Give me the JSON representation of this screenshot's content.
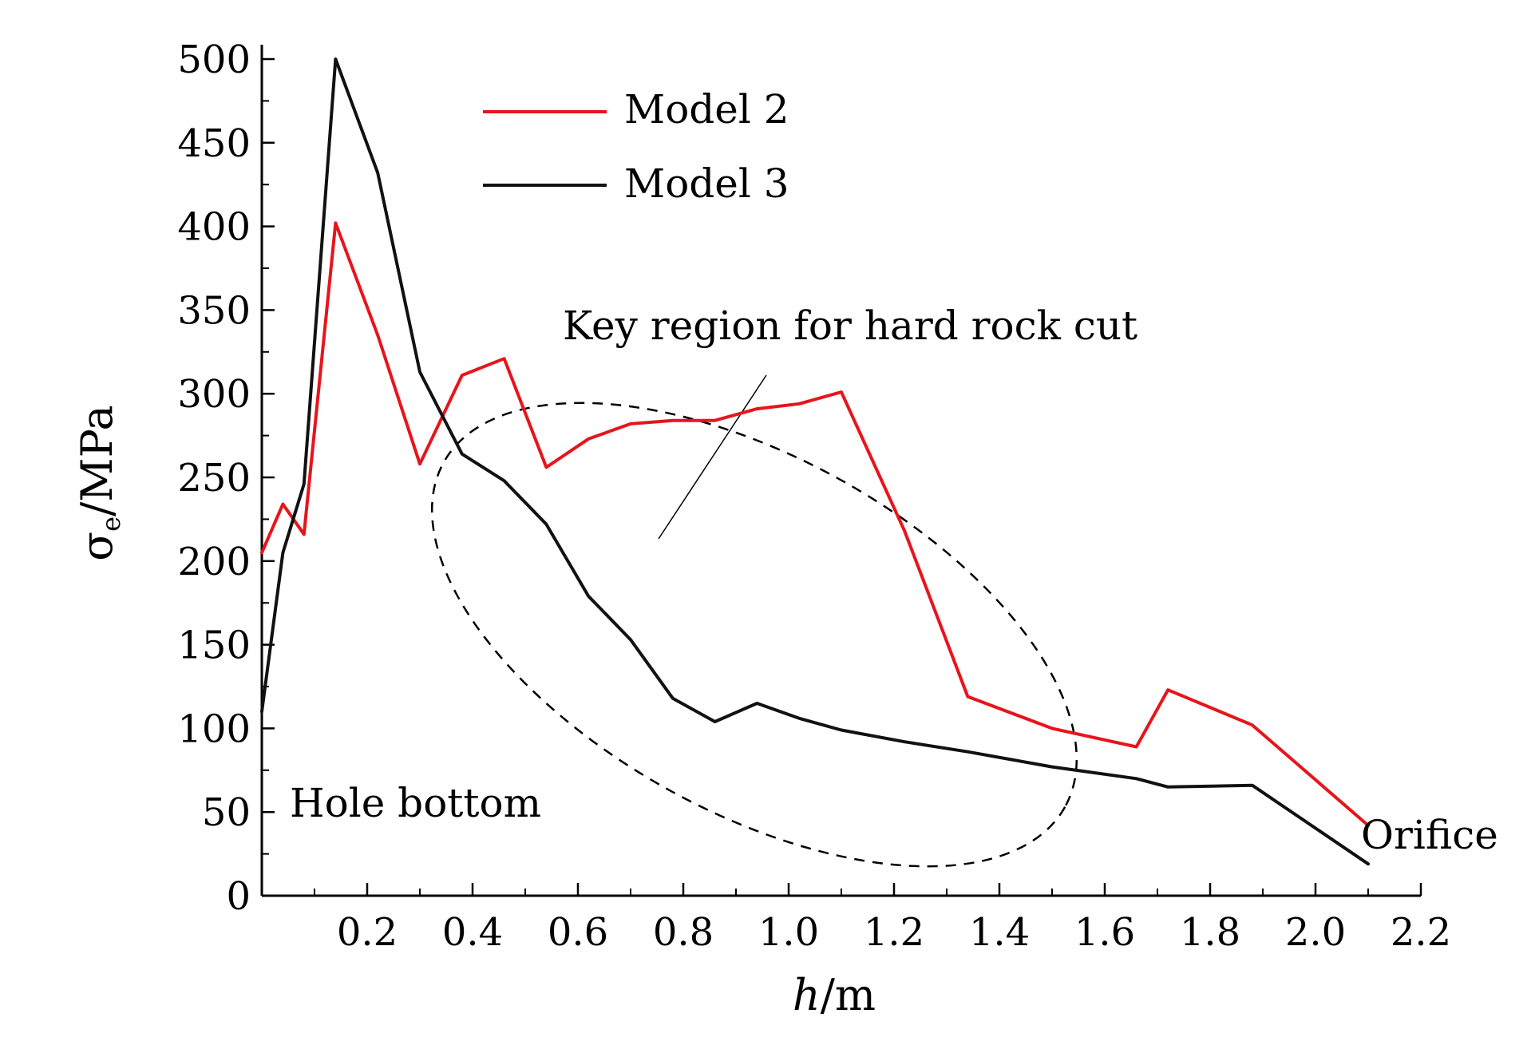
{
  "chart_data": {
    "type": "line",
    "xlabel_italic": "h",
    "xlabel_rest": "/m",
    "ylabel_symbol": "σ",
    "ylabel_sub": "e",
    "ylabel_rest": "/MPa",
    "xlim": [
      0,
      2.2
    ],
    "ylim": [
      0,
      500
    ],
    "xticks": [
      0.2,
      0.4,
      0.6,
      0.8,
      1.0,
      1.2,
      1.4,
      1.6,
      1.8,
      2.0,
      2.2
    ],
    "xtick_labels": [
      "0.2",
      "0.4",
      "0.6",
      "0.8",
      "1.0",
      "1.2",
      "1.4",
      "1.6",
      "1.8",
      "2.0",
      "2.2"
    ],
    "yticks": [
      0,
      50,
      100,
      150,
      200,
      250,
      300,
      350,
      400,
      450,
      500
    ],
    "ytick_labels": [
      "0",
      "50",
      "100",
      "150",
      "200",
      "250",
      "300",
      "350",
      "400",
      "450",
      "500"
    ],
    "grid": false,
    "legend_position": "top-center",
    "series": [
      {
        "name": "Model 2",
        "color": "#e8141c",
        "x": [
          0.0,
          0.04,
          0.08,
          0.14,
          0.22,
          0.3,
          0.38,
          0.46,
          0.54,
          0.62,
          0.7,
          0.78,
          0.86,
          0.94,
          1.02,
          1.1,
          1.22,
          1.34,
          1.5,
          1.66,
          1.72,
          1.88,
          2.1
        ],
        "y": [
          205,
          234,
          216,
          402,
          335,
          258,
          311,
          321,
          256,
          273,
          282,
          284,
          284,
          291,
          294,
          301,
          218,
          119,
          100,
          89,
          123,
          102,
          42
        ]
      },
      {
        "name": "Model 3",
        "color": "#111111",
        "x": [
          0.0,
          0.04,
          0.08,
          0.14,
          0.22,
          0.3,
          0.38,
          0.46,
          0.54,
          0.62,
          0.7,
          0.78,
          0.86,
          0.94,
          1.02,
          1.1,
          1.22,
          1.34,
          1.5,
          1.66,
          1.72,
          1.88,
          2.1
        ],
        "y": [
          110,
          205,
          246,
          500,
          432,
          313,
          264,
          248,
          222,
          179,
          153,
          118,
          104,
          115,
          106,
          99,
          92,
          86,
          77,
          70,
          65,
          66,
          19
        ]
      }
    ],
    "annotations": {
      "hole_bottom": "Hole bottom",
      "orifice": "Orifice",
      "key_region": "Key region for hard rock cut"
    }
  }
}
